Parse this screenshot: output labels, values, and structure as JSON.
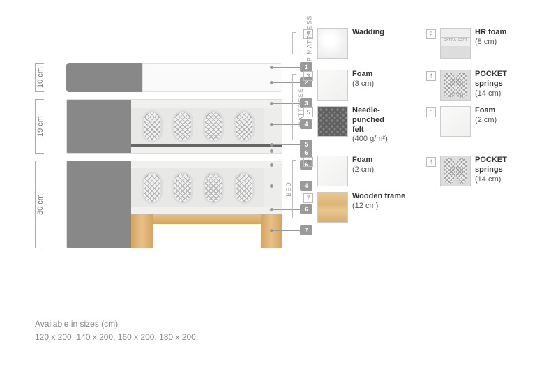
{
  "dimensions": {
    "top_mattress": "10 cm",
    "mattress": "19 cm",
    "bed": "30 cm"
  },
  "diagram_pointers": [
    "1",
    "2",
    "3",
    "4",
    "5",
    "6",
    "6",
    "4",
    "6",
    "7"
  ],
  "sections": {
    "top_mattress": {
      "label": "TOP MATTRESS",
      "items": [
        {
          "num": "1",
          "name": "Wadding",
          "detail": "",
          "thumb": "wadding"
        },
        {
          "num": "2",
          "name": "HR foam",
          "detail": "(8 cm)",
          "thumb": "hrfoam"
        }
      ]
    },
    "mattress": {
      "label": "MATTRESS",
      "items": [
        {
          "num": "3",
          "name": "Foam",
          "detail": "(3 cm)",
          "thumb": "foam"
        },
        {
          "num": "4",
          "name": "POCKET springs",
          "detail": "(14 cm)",
          "thumb": "springs"
        },
        {
          "num": "5",
          "name": "Needle-punched felt",
          "detail": "(400 g/m²)",
          "thumb": "felt"
        },
        {
          "num": "6",
          "name": "Foam",
          "detail": "(2 cm)",
          "thumb": "foam"
        }
      ]
    },
    "bed": {
      "label": "BED",
      "items": [
        {
          "num": "6",
          "name": "Foam",
          "detail": "(2 cm)",
          "thumb": "foam"
        },
        {
          "num": "4",
          "name": "POCKET springs",
          "detail": "(14 cm)",
          "thumb": "springs"
        },
        {
          "num": "7",
          "name": "Wooden frame",
          "detail": "(12 cm)",
          "thumb": "wood"
        }
      ]
    }
  },
  "sizes": {
    "label": "Available in sizes (cm)",
    "values": "120 x 200, 140 x 200, 160 x 200, 180 x 200."
  },
  "colors": {
    "grey_fabric": "#888888",
    "foam": "#f0f0ee",
    "felt": "#666666",
    "wood": "#d4a560",
    "badge": "#9a9a9a",
    "text_muted": "#888888"
  }
}
